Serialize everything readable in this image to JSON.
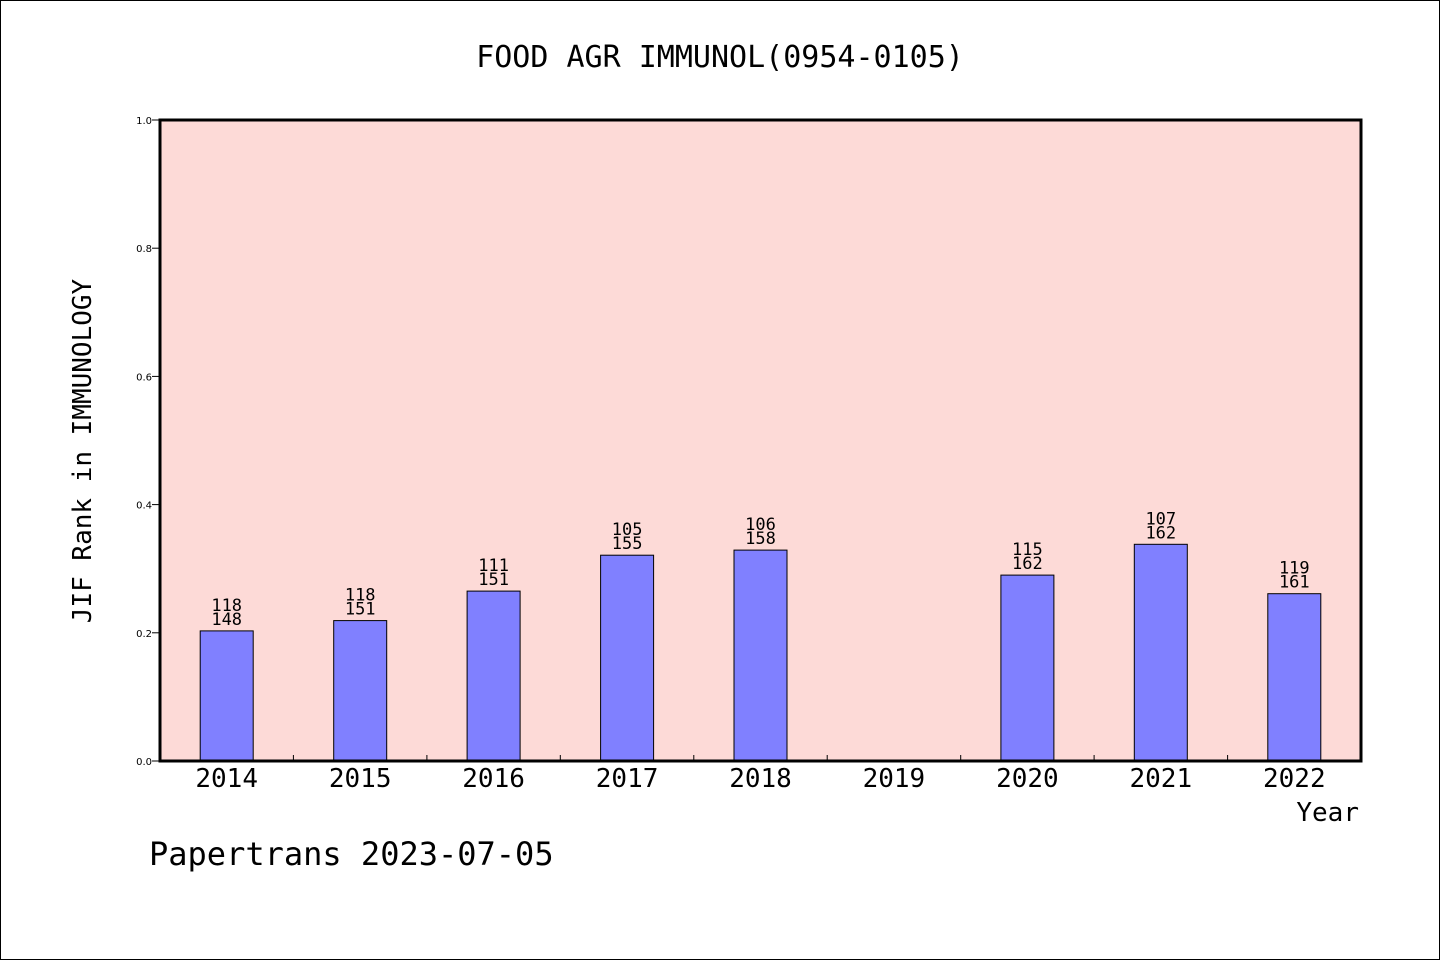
{
  "chart_data": {
    "type": "bar",
    "title": "FOOD AGR IMMUNOL(0954-0105)",
    "xlabel": "Year",
    "ylabel": "JIF Rank in IMMUNOLOGY",
    "categories": [
      "2014",
      "2015",
      "2016",
      "2017",
      "2018",
      "2019",
      "2020",
      "2021",
      "2022"
    ],
    "values": [
      0.203,
      0.219,
      0.265,
      0.321,
      0.329,
      null,
      0.29,
      0.338,
      0.261
    ],
    "bar_labels": [
      [
        "118",
        "148"
      ],
      [
        "118",
        "151"
      ],
      [
        "111",
        "151"
      ],
      [
        "105",
        "155"
      ],
      [
        "106",
        "158"
      ],
      null,
      [
        "115",
        "162"
      ],
      [
        "107",
        "162"
      ],
      [
        "119",
        "161"
      ]
    ],
    "ylim": [
      0.0,
      1.0
    ],
    "yticks": [
      "0.0",
      "0.2",
      "0.4",
      "0.6",
      "0.8",
      "1.0"
    ],
    "grid": false,
    "legend": "none",
    "colors": {
      "plot_background": "#fddad7",
      "bar_fill": "#8080ff",
      "bar_stroke": "#000000",
      "axis": "#000000"
    }
  },
  "footer": "Papertrans 2023-07-05"
}
